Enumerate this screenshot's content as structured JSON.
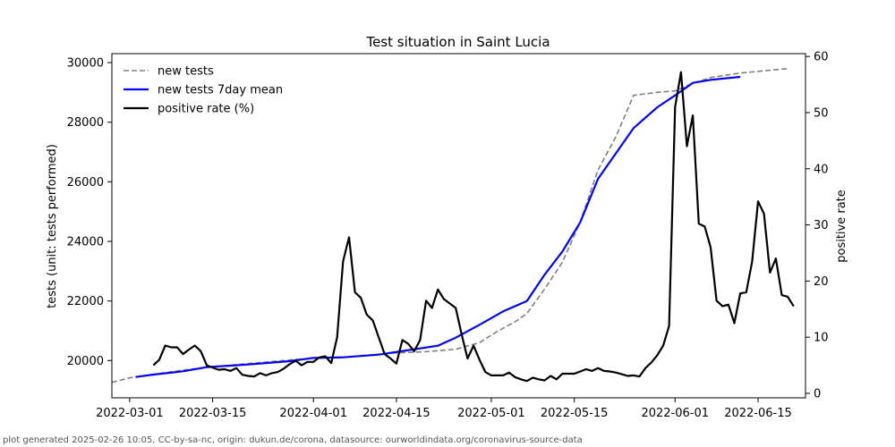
{
  "chart_data": {
    "type": "line",
    "title": "Test situation in Saint Lucia",
    "xlabel": "",
    "ylabel_left": "tests (unit: tests performed)",
    "ylabel_right": "positive rate",
    "x_start": "2022-02-26",
    "x_ticks": [
      "2022-03-01",
      "2022-03-15",
      "2022-04-01",
      "2022-04-15",
      "2022-05-01",
      "2022-05-15",
      "2022-06-01",
      "2022-06-15"
    ],
    "y_left_ticks": [
      20000,
      22000,
      24000,
      26000,
      28000,
      30000
    ],
    "y_right_ticks": [
      0,
      10,
      20,
      30,
      40,
      50,
      60
    ],
    "y_left_range": [
      18750,
      30300
    ],
    "y_right_range": [
      -0.8,
      60.5
    ],
    "legend_position": "top-left",
    "grid": false,
    "series": [
      {
        "name": "new tests",
        "axis": "left",
        "style": "dashed",
        "color": "#808080",
        "points": [
          [
            "2022-02-26",
            19270
          ],
          [
            "2022-03-01",
            19420
          ],
          [
            "2022-03-05",
            19540
          ],
          [
            "2022-03-10",
            19680
          ],
          [
            "2022-03-15",
            19790
          ],
          [
            "2022-03-21",
            19900
          ],
          [
            "2022-03-28",
            20020
          ],
          [
            "2022-04-01",
            20080
          ],
          [
            "2022-04-06",
            20110
          ],
          [
            "2022-04-10",
            20180
          ],
          [
            "2022-04-15",
            20260
          ],
          [
            "2022-04-20",
            20300
          ],
          [
            "2022-04-25",
            20380
          ],
          [
            "2022-04-29",
            20600
          ],
          [
            "2022-05-02",
            20980
          ],
          [
            "2022-05-05",
            21300
          ],
          [
            "2022-05-07",
            21580
          ],
          [
            "2022-05-10",
            22400
          ],
          [
            "2022-05-13",
            23300
          ],
          [
            "2022-05-16",
            24650
          ],
          [
            "2022-05-19",
            26400
          ],
          [
            "2022-05-22",
            27500
          ],
          [
            "2022-05-25",
            28900
          ],
          [
            "2022-05-29",
            29000
          ],
          [
            "2022-06-01",
            29050
          ],
          [
            "2022-06-04",
            29300
          ],
          [
            "2022-06-07",
            29500
          ],
          [
            "2022-06-12",
            29650
          ],
          [
            "2022-06-20",
            29800
          ]
        ]
      },
      {
        "name": "new tests 7day mean",
        "axis": "left",
        "style": "solid",
        "color": "#0000ff",
        "points": [
          [
            "2022-03-02",
            19450
          ],
          [
            "2022-03-05",
            19530
          ],
          [
            "2022-03-10",
            19640
          ],
          [
            "2022-03-14",
            19780
          ],
          [
            "2022-03-21",
            19870
          ],
          [
            "2022-03-28",
            19980
          ],
          [
            "2022-04-01",
            20090
          ],
          [
            "2022-04-06",
            20110
          ],
          [
            "2022-04-12",
            20200
          ],
          [
            "2022-04-17",
            20350
          ],
          [
            "2022-04-22",
            20500
          ],
          [
            "2022-04-25",
            20770
          ],
          [
            "2022-04-29",
            21200
          ],
          [
            "2022-05-03",
            21650
          ],
          [
            "2022-05-07",
            22000
          ],
          [
            "2022-05-10",
            22880
          ],
          [
            "2022-05-13",
            23660
          ],
          [
            "2022-05-16",
            24640
          ],
          [
            "2022-05-19",
            26100
          ],
          [
            "2022-05-22",
            26950
          ],
          [
            "2022-05-25",
            27800
          ],
          [
            "2022-05-29",
            28500
          ],
          [
            "2022-06-01",
            28900
          ],
          [
            "2022-06-04",
            29320
          ],
          [
            "2022-06-07",
            29420
          ],
          [
            "2022-06-12",
            29520
          ]
        ]
      },
      {
        "name": "positive rate (%)",
        "axis": "right",
        "style": "solid",
        "color": "#000000",
        "points": [
          [
            "2022-03-05",
            5
          ],
          [
            "2022-03-06",
            6
          ],
          [
            "2022-03-07",
            8.5
          ],
          [
            "2022-03-08",
            8.2
          ],
          [
            "2022-03-09",
            8.2
          ],
          [
            "2022-03-10",
            7
          ],
          [
            "2022-03-11",
            7.8
          ],
          [
            "2022-03-12",
            8.5
          ],
          [
            "2022-03-13",
            7.5
          ],
          [
            "2022-03-14",
            5
          ],
          [
            "2022-03-15",
            4.6
          ],
          [
            "2022-03-16",
            4.2
          ],
          [
            "2022-03-17",
            4.3
          ],
          [
            "2022-03-18",
            4
          ],
          [
            "2022-03-19",
            4.5
          ],
          [
            "2022-03-20",
            3.3
          ],
          [
            "2022-03-21",
            3.1
          ],
          [
            "2022-03-22",
            3
          ],
          [
            "2022-03-23",
            3.6
          ],
          [
            "2022-03-24",
            3.2
          ],
          [
            "2022-03-25",
            3.6
          ],
          [
            "2022-03-26",
            3.8
          ],
          [
            "2022-03-27",
            4.4
          ],
          [
            "2022-03-28",
            5.2
          ],
          [
            "2022-03-29",
            5.8
          ],
          [
            "2022-03-30",
            5
          ],
          [
            "2022-03-31",
            5.6
          ],
          [
            "2022-04-01",
            5.6
          ],
          [
            "2022-04-02",
            6.4
          ],
          [
            "2022-04-03",
            6.6
          ],
          [
            "2022-04-04",
            5.4
          ],
          [
            "2022-04-05",
            10
          ],
          [
            "2022-04-06",
            23.5
          ],
          [
            "2022-04-07",
            27.8
          ],
          [
            "2022-04-08",
            18
          ],
          [
            "2022-04-09",
            17
          ],
          [
            "2022-04-10",
            14
          ],
          [
            "2022-04-11",
            13
          ],
          [
            "2022-04-12",
            10
          ],
          [
            "2022-04-13",
            7
          ],
          [
            "2022-04-14",
            6.2
          ],
          [
            "2022-04-15",
            5.3
          ],
          [
            "2022-04-16",
            9.5
          ],
          [
            "2022-04-17",
            8.8
          ],
          [
            "2022-04-18",
            7.5
          ],
          [
            "2022-04-19",
            9.5
          ],
          [
            "2022-04-20",
            16.5
          ],
          [
            "2022-04-21",
            15.2
          ],
          [
            "2022-04-22",
            18.5
          ],
          [
            "2022-04-23",
            16.8
          ],
          [
            "2022-04-24",
            16
          ],
          [
            "2022-04-25",
            15.2
          ],
          [
            "2022-04-26",
            10.5
          ],
          [
            "2022-04-27",
            6.2
          ],
          [
            "2022-04-28",
            8.5
          ],
          [
            "2022-04-29",
            6
          ],
          [
            "2022-04-30",
            3.8
          ],
          [
            "2022-05-01",
            3.2
          ],
          [
            "2022-05-02",
            3.2
          ],
          [
            "2022-05-03",
            3.2
          ],
          [
            "2022-05-04",
            3.7
          ],
          [
            "2022-05-05",
            2.9
          ],
          [
            "2022-05-06",
            2.5
          ],
          [
            "2022-05-07",
            2.2
          ],
          [
            "2022-05-08",
            2.8
          ],
          [
            "2022-05-09",
            2.5
          ],
          [
            "2022-05-10",
            2.3
          ],
          [
            "2022-05-11",
            3.1
          ],
          [
            "2022-05-12",
            2.5
          ],
          [
            "2022-05-13",
            3.5
          ],
          [
            "2022-05-14",
            3.5
          ],
          [
            "2022-05-15",
            3.5
          ],
          [
            "2022-05-16",
            3.9
          ],
          [
            "2022-05-17",
            4.3
          ],
          [
            "2022-05-18",
            4
          ],
          [
            "2022-05-19",
            4.5
          ],
          [
            "2022-05-20",
            4
          ],
          [
            "2022-05-21",
            3.9
          ],
          [
            "2022-05-22",
            3.7
          ],
          [
            "2022-05-23",
            3.4
          ],
          [
            "2022-05-24",
            3.1
          ],
          [
            "2022-05-25",
            3.2
          ],
          [
            "2022-05-26",
            3
          ],
          [
            "2022-05-27",
            4.5
          ],
          [
            "2022-05-28",
            5.5
          ],
          [
            "2022-05-29",
            6.8
          ],
          [
            "2022-05-30",
            8.5
          ],
          [
            "2022-05-31",
            12
          ],
          [
            "2022-06-01",
            51
          ],
          [
            "2022-06-02",
            57.2
          ],
          [
            "2022-06-03",
            44
          ],
          [
            "2022-06-04",
            49.5
          ],
          [
            "2022-06-05",
            30.2
          ],
          [
            "2022-06-06",
            29.7
          ],
          [
            "2022-06-07",
            26
          ],
          [
            "2022-06-08",
            16.5
          ],
          [
            "2022-06-09",
            15.5
          ],
          [
            "2022-06-10",
            15.8
          ],
          [
            "2022-06-11",
            12.5
          ],
          [
            "2022-06-12",
            17.8
          ],
          [
            "2022-06-13",
            18
          ],
          [
            "2022-06-14",
            23.5
          ],
          [
            "2022-06-15",
            34.2
          ],
          [
            "2022-06-16",
            32
          ],
          [
            "2022-06-17",
            21.5
          ],
          [
            "2022-06-18",
            24
          ],
          [
            "2022-06-19",
            17.5
          ],
          [
            "2022-06-20",
            17.2
          ],
          [
            "2022-06-21",
            15.5
          ]
        ]
      }
    ]
  },
  "footer_text": "plot generated 2025-02-26 10:05, CC-by-sa-nc, origin: dukun.de/corona, datasource: ourworldindata.org/coronavirus-source-data"
}
